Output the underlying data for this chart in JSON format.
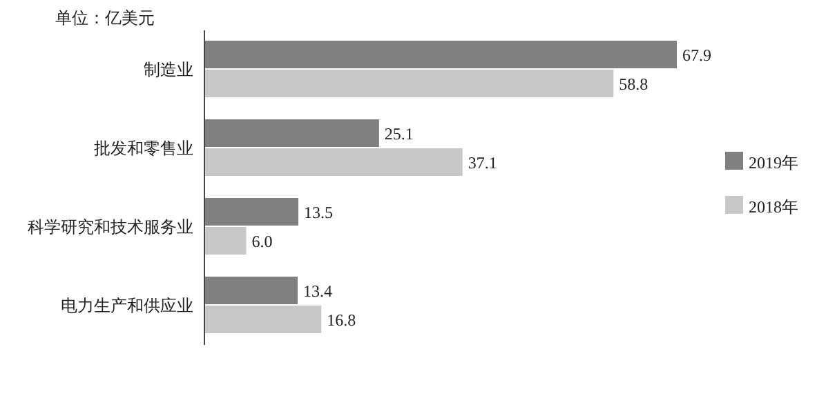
{
  "chart_data": {
    "type": "bar",
    "orientation": "horizontal",
    "ylabel": "单位：亿美元",
    "categories": [
      "制造业",
      "批发和零售业",
      "科学研究和技术服务业",
      "电力生产和供应业"
    ],
    "series": [
      {
        "name": "2019年",
        "color": "#808080",
        "values": [
          67.9,
          25.1,
          13.5,
          13.4
        ],
        "value_labels": [
          "67.9",
          "25.1",
          "13.5",
          "13.4"
        ]
      },
      {
        "name": "2018年",
        "color": "#c8c8c8",
        "values": [
          58.8,
          37.1,
          6.0,
          16.8
        ],
        "value_labels": [
          "58.8",
          "37.1",
          "6.0",
          "16.8"
        ]
      }
    ],
    "legend": "right"
  }
}
